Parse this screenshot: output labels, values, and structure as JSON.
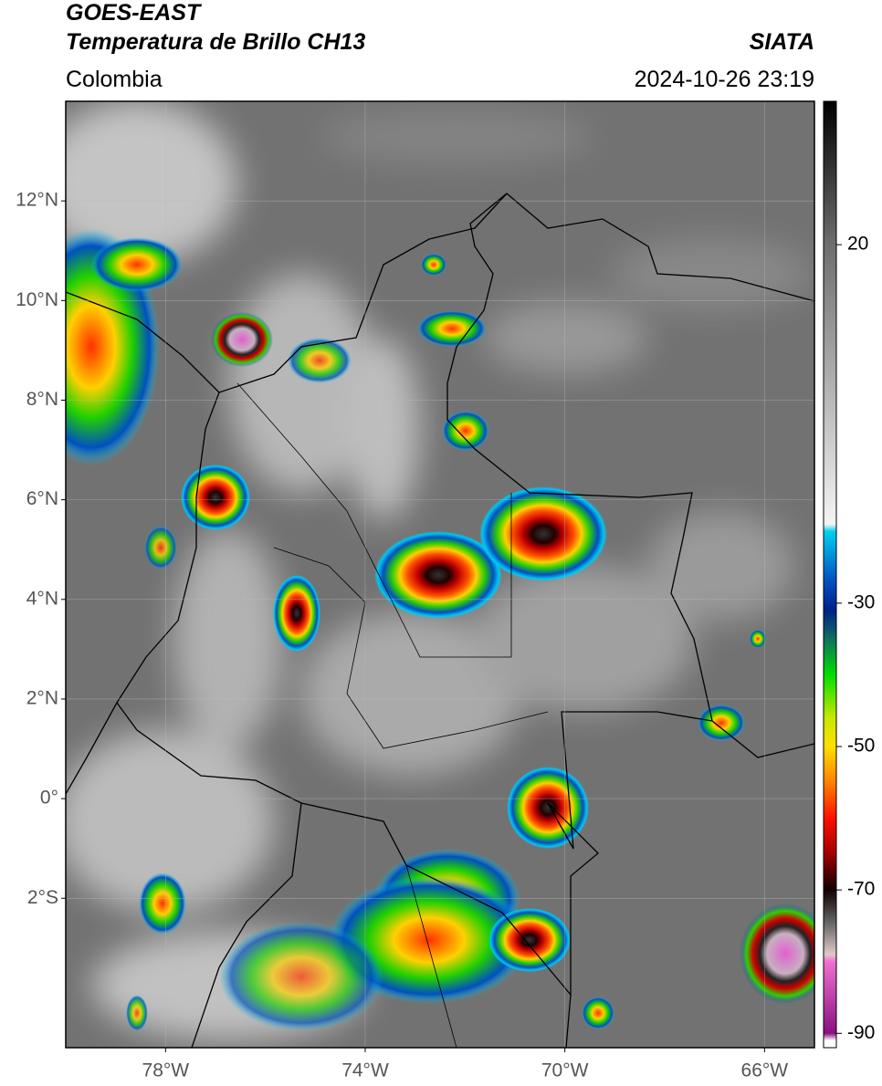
{
  "header": {
    "title": "GOES-EAST",
    "product": "Temperatura de Brillo CH13",
    "source": "SIATA",
    "region": "Colombia",
    "datetime": "2024-10-26 23:19"
  },
  "map": {
    "xlim": [
      -80,
      -65
    ],
    "ylim": [
      -5,
      14
    ],
    "xticks": [
      {
        "value": -78,
        "label": "78°W"
      },
      {
        "value": -74,
        "label": "74°W"
      },
      {
        "value": -70,
        "label": "70°W"
      },
      {
        "value": -66,
        "label": "66°W"
      }
    ],
    "yticks": [
      {
        "value": 12,
        "label": "12°N"
      },
      {
        "value": 10,
        "label": "10°N"
      },
      {
        "value": 8,
        "label": "8°N"
      },
      {
        "value": 6,
        "label": "6°N"
      },
      {
        "value": 4,
        "label": "4°N"
      },
      {
        "value": 2,
        "label": "2°N"
      },
      {
        "value": 0,
        "label": "0°"
      },
      {
        "value": -2,
        "label": "2°S"
      }
    ],
    "grid": true
  },
  "colorbar": {
    "lim": [
      -92,
      40
    ],
    "ticks": [
      20,
      -30,
      -50,
      -70,
      -90
    ],
    "colormap": [
      [
        40,
        "#000000"
      ],
      [
        20,
        "#6e6e6e"
      ],
      [
        -19,
        "#f4f4f4"
      ],
      [
        -20,
        "#00d0f0"
      ],
      [
        -27,
        "#0050c0"
      ],
      [
        -31,
        "#00208a"
      ],
      [
        -35,
        "#107060"
      ],
      [
        -40,
        "#00e000"
      ],
      [
        -46,
        "#c8e800"
      ],
      [
        -50,
        "#ffe000"
      ],
      [
        -55,
        "#ff8000"
      ],
      [
        -60,
        "#ff1000"
      ],
      [
        -65,
        "#a00000"
      ],
      [
        -70,
        "#100000"
      ],
      [
        -75,
        "#707070"
      ],
      [
        -79,
        "#e0c8c8"
      ],
      [
        -80,
        "#f070d0"
      ],
      [
        -90,
        "#8a1080"
      ],
      [
        -91,
        "#ffffff"
      ]
    ]
  }
}
